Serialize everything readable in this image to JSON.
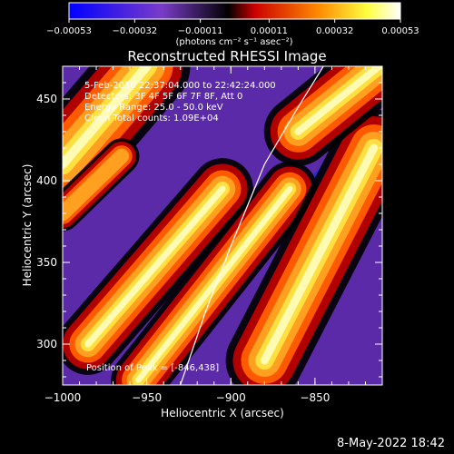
{
  "chart_data": {
    "type": "heatmap",
    "title": "Reconstructed RHESSI Image",
    "xlabel": "Heliocentric X (arcsec)",
    "ylabel": "Heliocentric Y (arcsec)",
    "xlim": [
      -1000,
      -810
    ],
    "ylim": [
      275,
      470
    ],
    "xticks": [
      -1000,
      -950,
      -900,
      -850
    ],
    "xtick_labels": [
      "−1000",
      "−950",
      "−900",
      "−850"
    ],
    "yticks": [
      300,
      350,
      400,
      450
    ],
    "ytick_labels": [
      "300",
      "350",
      "400",
      "450"
    ],
    "colorbar": {
      "min": -0.00053,
      "max": 0.00053,
      "ticks": [
        -0.00053,
        -0.00032,
        -0.00011,
        0.00011,
        0.00032,
        0.00053
      ],
      "tick_labels": [
        "−0.00053",
        "−0.00032",
        "−0.00011",
        "0.00011",
        "0.00032",
        "0.00053"
      ],
      "label": "(photons cm⁻² s⁻¹ asec⁻²)",
      "colors": [
        "#0000ff",
        "#7a3cc8",
        "#000000",
        "#cc0000",
        "#ff8800",
        "#ffff40",
        "#ffffff"
      ]
    },
    "annotations": [
      "5-Feb-2010 22:37:04.000 to 22:42:24.000",
      "Detectors: 3F 4F 5F 6F 7F 8F, Att 0",
      "Energy Range: 25.0 - 50.0 keV",
      "Clean     Total counts: 1.09E+04"
    ],
    "peak_label": "Position of Peak = [-846,438]",
    "peak": [
      -846,
      438
    ],
    "limb_curve": [
      [
        -930,
        275
      ],
      [
        -915,
        320
      ],
      [
        -900,
        360
      ],
      [
        -880,
        410
      ],
      [
        -860,
        445
      ],
      [
        -845,
        470
      ]
    ],
    "bright_bands": [
      {
        "from": [
          -1000,
          410
        ],
        "to": [
          -950,
          470
        ],
        "width": 28,
        "intensity": 1.0
      },
      {
        "from": [
          -985,
          300
        ],
        "to": [
          -905,
          395
        ],
        "width": 22,
        "intensity": 0.75
      },
      {
        "from": [
          -955,
          278
        ],
        "to": [
          -865,
          395
        ],
        "width": 20,
        "intensity": 0.7
      },
      {
        "from": [
          -880,
          290
        ],
        "to": [
          -815,
          420
        ],
        "width": 26,
        "intensity": 0.9
      },
      {
        "from": [
          -860,
          430
        ],
        "to": [
          -812,
          470
        ],
        "width": 22,
        "intensity": 1.0
      },
      {
        "from": [
          -1000,
          380
        ],
        "to": [
          -965,
          415
        ],
        "width": 14,
        "intensity": 0.55
      }
    ],
    "dark_bands": [
      {
        "from": [
          -950,
          300
        ],
        "to": [
          -880,
          380
        ],
        "width": 14,
        "intensity": 0.9
      },
      {
        "from": [
          -890,
          360
        ],
        "to": [
          -840,
          410
        ],
        "width": 12,
        "intensity": 0.6
      }
    ]
  },
  "footer": {
    "datestamp": "8-May-2022 18:42"
  }
}
